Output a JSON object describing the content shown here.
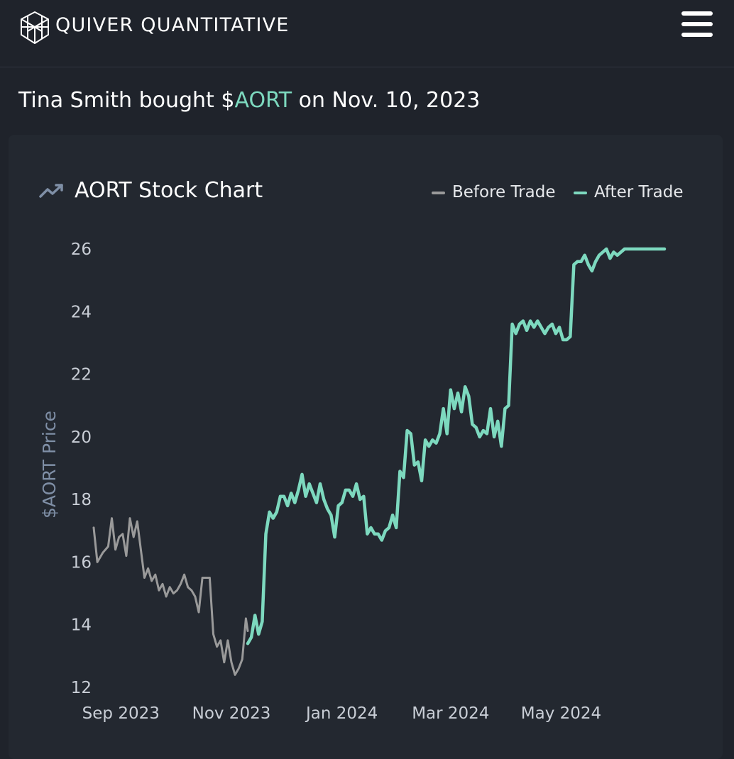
{
  "header": {
    "brand": "QUIVER QUANTITATIVE",
    "logo_icon": "quiver-cube-logo",
    "menu_icon": "hamburger-menu-icon"
  },
  "headline": {
    "prefix": "Tina Smith bought $",
    "ticker": "AORT",
    "suffix": " on Nov. 10, 2023",
    "ticker_color": "#7dd9bf"
  },
  "chart_card": {
    "title": "AORT Stock Chart",
    "title_icon": "trending-up-icon",
    "legend": [
      {
        "label": "Before Trade",
        "color": "#9a9a9a"
      },
      {
        "label": "After Trade",
        "color": "#7dd9bf"
      }
    ]
  },
  "chart_data": {
    "type": "line",
    "ylabel": "$AORT Price",
    "xlabel": "",
    "ylim": [
      12,
      26
    ],
    "yticks": [
      12,
      14,
      16,
      18,
      20,
      22,
      24,
      26
    ],
    "xticks": [
      {
        "date": "2023-09-01",
        "label": "Sep 2023"
      },
      {
        "date": "2023-11-01",
        "label": "Nov 2023"
      },
      {
        "date": "2024-01-01",
        "label": "Jan 2024"
      },
      {
        "date": "2024-03-01",
        "label": "Mar 2024"
      },
      {
        "date": "2024-05-01",
        "label": "May 2024"
      }
    ],
    "x_range": [
      "2023-08-17",
      "2024-06-27"
    ],
    "grid": false,
    "legend_position": "top-right",
    "series": [
      {
        "name": "Before Trade",
        "color": "#9a9a9a",
        "x": [
          "2023-08-17",
          "2023-08-19",
          "2023-08-22",
          "2023-08-25",
          "2023-08-27",
          "2023-08-29",
          "2023-08-31",
          "2023-09-02",
          "2023-09-04",
          "2023-09-06",
          "2023-09-08",
          "2023-09-10",
          "2023-09-12",
          "2023-09-14",
          "2023-09-16",
          "2023-09-18",
          "2023-09-20",
          "2023-09-22",
          "2023-09-24",
          "2023-09-26",
          "2023-09-28",
          "2023-09-30",
          "2023-10-02",
          "2023-10-04",
          "2023-10-06",
          "2023-10-08",
          "2023-10-10",
          "2023-10-12",
          "2023-10-14",
          "2023-10-16",
          "2023-10-18",
          "2023-10-20",
          "2023-10-22",
          "2023-10-24",
          "2023-10-26",
          "2023-10-28",
          "2023-10-30",
          "2023-11-01",
          "2023-11-03",
          "2023-11-05",
          "2023-11-07",
          "2023-11-09",
          "2023-11-10"
        ],
        "y": [
          17.1,
          16.0,
          16.3,
          16.5,
          17.4,
          16.4,
          16.8,
          16.9,
          16.2,
          17.4,
          16.8,
          17.3,
          16.4,
          15.5,
          15.8,
          15.4,
          15.6,
          15.1,
          15.3,
          14.9,
          15.2,
          15.0,
          15.1,
          15.3,
          15.6,
          15.2,
          15.1,
          14.9,
          14.4,
          15.5,
          15.5,
          15.5,
          13.7,
          13.3,
          13.5,
          12.8,
          13.5,
          12.8,
          12.4,
          12.6,
          12.9,
          14.2,
          13.8
        ]
      },
      {
        "name": "After Trade",
        "color": "#7dd9bf",
        "x": [
          "2023-11-10",
          "2023-11-12",
          "2023-11-14",
          "2023-11-16",
          "2023-11-18",
          "2023-11-20",
          "2023-11-22",
          "2023-11-24",
          "2023-11-26",
          "2023-11-28",
          "2023-11-30",
          "2023-12-02",
          "2023-12-04",
          "2023-12-06",
          "2023-12-08",
          "2023-12-10",
          "2023-12-12",
          "2023-12-14",
          "2023-12-16",
          "2023-12-18",
          "2023-12-20",
          "2023-12-22",
          "2023-12-24",
          "2023-12-26",
          "2023-12-28",
          "2023-12-30",
          "2024-01-01",
          "2024-01-03",
          "2024-01-05",
          "2024-01-07",
          "2024-01-09",
          "2024-01-11",
          "2024-01-13",
          "2024-01-15",
          "2024-01-17",
          "2024-01-19",
          "2024-01-21",
          "2024-01-23",
          "2024-01-25",
          "2024-01-27",
          "2024-01-29",
          "2024-01-31",
          "2024-02-02",
          "2024-02-04",
          "2024-02-06",
          "2024-02-08",
          "2024-02-10",
          "2024-02-12",
          "2024-02-14",
          "2024-02-16",
          "2024-02-18",
          "2024-02-20",
          "2024-02-22",
          "2024-02-24",
          "2024-02-26",
          "2024-02-28",
          "2024-03-01",
          "2024-03-03",
          "2024-03-05",
          "2024-03-07",
          "2024-03-09",
          "2024-03-11",
          "2024-03-13",
          "2024-03-15",
          "2024-03-17",
          "2024-03-19",
          "2024-03-21",
          "2024-03-23",
          "2024-03-25",
          "2024-03-27",
          "2024-03-29",
          "2024-03-31",
          "2024-04-02",
          "2024-04-04",
          "2024-04-06",
          "2024-04-08",
          "2024-04-10",
          "2024-04-12",
          "2024-04-14",
          "2024-04-16",
          "2024-04-18",
          "2024-04-20",
          "2024-04-22",
          "2024-04-24",
          "2024-04-26",
          "2024-04-28",
          "2024-04-30",
          "2024-05-02",
          "2024-05-04",
          "2024-05-06",
          "2024-05-08",
          "2024-05-10",
          "2024-05-12",
          "2024-05-14",
          "2024-05-16",
          "2024-05-18",
          "2024-05-20",
          "2024-05-22",
          "2024-05-24",
          "2024-05-26",
          "2024-05-28",
          "2024-05-30",
          "2024-06-01",
          "2024-06-03",
          "2024-06-05",
          "2024-06-07",
          "2024-06-09",
          "2024-06-11",
          "2024-06-13",
          "2024-06-15",
          "2024-06-17",
          "2024-06-19",
          "2024-06-21",
          "2024-06-23",
          "2024-06-25",
          "2024-06-27"
        ],
        "y": [
          13.4,
          13.6,
          14.3,
          13.7,
          14.1,
          16.9,
          17.6,
          17.4,
          17.6,
          18.1,
          18.1,
          17.8,
          18.2,
          17.9,
          18.3,
          18.8,
          18.1,
          18.5,
          18.2,
          17.9,
          18.5,
          18.0,
          17.7,
          17.5,
          16.8,
          17.8,
          17.9,
          18.3,
          18.3,
          18.1,
          18.5,
          18.0,
          18.1,
          16.9,
          17.1,
          16.9,
          16.9,
          16.7,
          17.0,
          17.1,
          17.5,
          17.1,
          18.9,
          18.7,
          20.2,
          20.1,
          19.1,
          19.2,
          18.6,
          19.9,
          19.7,
          19.9,
          19.8,
          20.1,
          20.9,
          20.1,
          21.5,
          20.9,
          21.4,
          20.8,
          21.6,
          21.3,
          20.4,
          20.3,
          20.0,
          20.2,
          20.1,
          20.9,
          20.0,
          20.5,
          19.7,
          20.9,
          21.0,
          23.6,
          23.3,
          23.6,
          23.7,
          23.4,
          23.7,
          23.5,
          23.7,
          23.5,
          23.3,
          23.5,
          23.6,
          23.3,
          23.5,
          23.1,
          23.1,
          23.2,
          25.5,
          25.6,
          25.6,
          25.8,
          25.5,
          25.3,
          25.6,
          25.8,
          25.9,
          26.0,
          25.7,
          25.9,
          25.8,
          25.9,
          26.0,
          26.0,
          26.0,
          26.0,
          26.0,
          26.0,
          26.0,
          26.0,
          26.0,
          26.0,
          26.0,
          26.0
        ]
      }
    ]
  }
}
